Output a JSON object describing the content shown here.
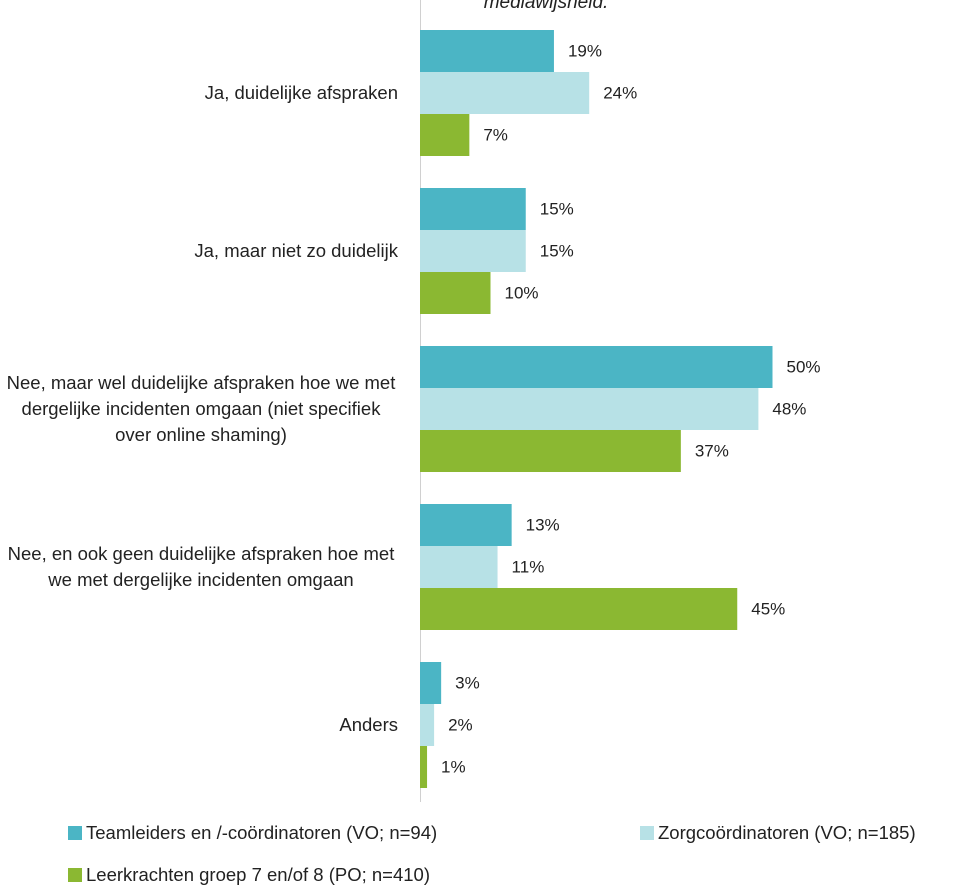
{
  "chart_data": {
    "type": "hbar",
    "title": "mediawijsheid.",
    "categories": [
      "Ja, duidelijke afspraken",
      "Ja, maar niet zo duidelijk",
      "Nee, maar wel duidelijke afspraken hoe we met dergelijke incidenten omgaan (niet specifiek over online shaming)",
      "Nee, en ook geen duidelijke afspraken hoe met we met dergelijke incidenten omgaan",
      "Anders"
    ],
    "series": [
      {
        "name": "Teamleiders en /-coördinatoren (VO; n=94)",
        "color": "#4bb5c5",
        "values": [
          19,
          15,
          50,
          13,
          3
        ],
        "value_labels": [
          "19%",
          "15%",
          "50%",
          "13%",
          "3%"
        ]
      },
      {
        "name": "Zorgcoördinatoren (VO; n=185)",
        "color": "#b7e1e6",
        "values": [
          24,
          15,
          48,
          11,
          2
        ],
        "value_labels": [
          "24%",
          "15%",
          "48%",
          "11%",
          "2%"
        ]
      },
      {
        "name": "Leerkrachten groep 7 en/of 8 (PO; n=410)",
        "color": "#8bb832",
        "values": [
          7,
          10,
          37,
          45,
          1
        ],
        "value_labels": [
          "7%",
          "10%",
          "37%",
          "45%",
          "1%"
        ]
      }
    ],
    "xlim": [
      0,
      60
    ],
    "legend": "bottom"
  }
}
